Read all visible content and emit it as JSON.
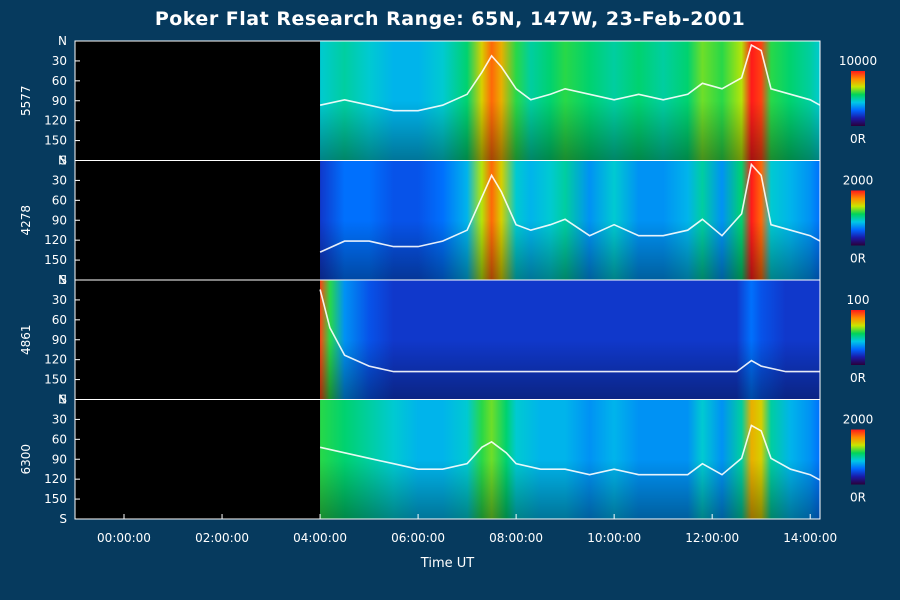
{
  "chart_data": {
    "type": "heatmap",
    "title": "Poker Flat Research Range: 65N, 147W, 23-Feb-2001",
    "xlabel": "Time UT",
    "x_ticks": [
      "00:00:00",
      "02:00:00",
      "04:00:00",
      "06:00:00",
      "08:00:00",
      "10:00:00",
      "12:00:00",
      "14:00:00"
    ],
    "y_ticks": [
      "N",
      "30",
      "60",
      "90",
      "120",
      "150",
      "S"
    ],
    "xlim_hours": [
      -1,
      14.2
    ],
    "ylim_deg": [
      0,
      180
    ],
    "data_start_hour": 4.0,
    "colors": {
      "background": "#063a5e",
      "no_data": "#000000",
      "contour": "#ffffff",
      "colorbar": [
        "#2a0038",
        "#1a1aa8",
        "#0066ff",
        "#00c8e6",
        "#00d45a",
        "#c8e600",
        "#ff8a00",
        "#ff1a1a"
      ]
    },
    "panels": [
      {
        "name": "5577",
        "cbar_max": "10000",
        "cbar_min": "0R",
        "intensity": [
          [
            4.0,
            0.45
          ],
          [
            4.5,
            0.5
          ],
          [
            5.0,
            0.45
          ],
          [
            5.5,
            0.4
          ],
          [
            6.0,
            0.4
          ],
          [
            6.5,
            0.45
          ],
          [
            7.0,
            0.55
          ],
          [
            7.3,
            0.75
          ],
          [
            7.5,
            0.9
          ],
          [
            7.7,
            0.8
          ],
          [
            8.0,
            0.6
          ],
          [
            8.3,
            0.5
          ],
          [
            8.7,
            0.55
          ],
          [
            9.0,
            0.6
          ],
          [
            9.5,
            0.55
          ],
          [
            10.0,
            0.5
          ],
          [
            10.5,
            0.55
          ],
          [
            11.0,
            0.5
          ],
          [
            11.5,
            0.55
          ],
          [
            11.8,
            0.65
          ],
          [
            12.2,
            0.6
          ],
          [
            12.6,
            0.7
          ],
          [
            12.8,
            1.0
          ],
          [
            13.0,
            0.95
          ],
          [
            13.2,
            0.6
          ],
          [
            13.6,
            0.55
          ],
          [
            14.0,
            0.5
          ],
          [
            14.2,
            0.45
          ]
        ]
      },
      {
        "name": "4278",
        "cbar_max": "2000",
        "cbar_min": "0R",
        "intensity": [
          [
            4.0,
            0.2
          ],
          [
            4.5,
            0.3
          ],
          [
            5.0,
            0.3
          ],
          [
            5.5,
            0.25
          ],
          [
            6.0,
            0.25
          ],
          [
            6.5,
            0.3
          ],
          [
            7.0,
            0.4
          ],
          [
            7.3,
            0.7
          ],
          [
            7.5,
            0.9
          ],
          [
            7.7,
            0.75
          ],
          [
            8.0,
            0.45
          ],
          [
            8.3,
            0.4
          ],
          [
            8.7,
            0.45
          ],
          [
            9.0,
            0.5
          ],
          [
            9.5,
            0.35
          ],
          [
            10.0,
            0.45
          ],
          [
            10.5,
            0.35
          ],
          [
            11.0,
            0.35
          ],
          [
            11.5,
            0.4
          ],
          [
            11.8,
            0.5
          ],
          [
            12.2,
            0.35
          ],
          [
            12.6,
            0.55
          ],
          [
            12.8,
            1.0
          ],
          [
            13.0,
            0.9
          ],
          [
            13.2,
            0.45
          ],
          [
            13.6,
            0.4
          ],
          [
            14.0,
            0.35
          ],
          [
            14.2,
            0.3
          ]
        ]
      },
      {
        "name": "4861",
        "cbar_max": "100",
        "cbar_min": "0R",
        "intensity": [
          [
            4.0,
            0.95
          ],
          [
            4.2,
            0.6
          ],
          [
            4.5,
            0.35
          ],
          [
            5.0,
            0.25
          ],
          [
            5.5,
            0.2
          ],
          [
            6.0,
            0.2
          ],
          [
            6.5,
            0.2
          ],
          [
            7.0,
            0.2
          ],
          [
            7.5,
            0.2
          ],
          [
            8.0,
            0.2
          ],
          [
            8.5,
            0.2
          ],
          [
            9.0,
            0.2
          ],
          [
            9.5,
            0.2
          ],
          [
            10.0,
            0.2
          ],
          [
            10.5,
            0.2
          ],
          [
            11.0,
            0.2
          ],
          [
            11.5,
            0.2
          ],
          [
            12.0,
            0.2
          ],
          [
            12.5,
            0.2
          ],
          [
            12.8,
            0.3
          ],
          [
            13.0,
            0.25
          ],
          [
            13.5,
            0.2
          ],
          [
            14.0,
            0.2
          ],
          [
            14.2,
            0.2
          ]
        ]
      },
      {
        "name": "6300",
        "cbar_max": "2000",
        "cbar_min": "0R",
        "intensity": [
          [
            4.0,
            0.6
          ],
          [
            4.5,
            0.55
          ],
          [
            5.0,
            0.5
          ],
          [
            5.5,
            0.45
          ],
          [
            6.0,
            0.4
          ],
          [
            6.5,
            0.4
          ],
          [
            7.0,
            0.45
          ],
          [
            7.3,
            0.6
          ],
          [
            7.5,
            0.65
          ],
          [
            7.8,
            0.55
          ],
          [
            8.0,
            0.45
          ],
          [
            8.5,
            0.4
          ],
          [
            9.0,
            0.4
          ],
          [
            9.5,
            0.35
          ],
          [
            10.0,
            0.4
          ],
          [
            10.5,
            0.35
          ],
          [
            11.0,
            0.35
          ],
          [
            11.5,
            0.35
          ],
          [
            11.8,
            0.45
          ],
          [
            12.2,
            0.35
          ],
          [
            12.6,
            0.5
          ],
          [
            12.8,
            0.8
          ],
          [
            13.0,
            0.75
          ],
          [
            13.2,
            0.5
          ],
          [
            13.6,
            0.4
          ],
          [
            14.0,
            0.35
          ],
          [
            14.2,
            0.3
          ]
        ]
      }
    ]
  }
}
